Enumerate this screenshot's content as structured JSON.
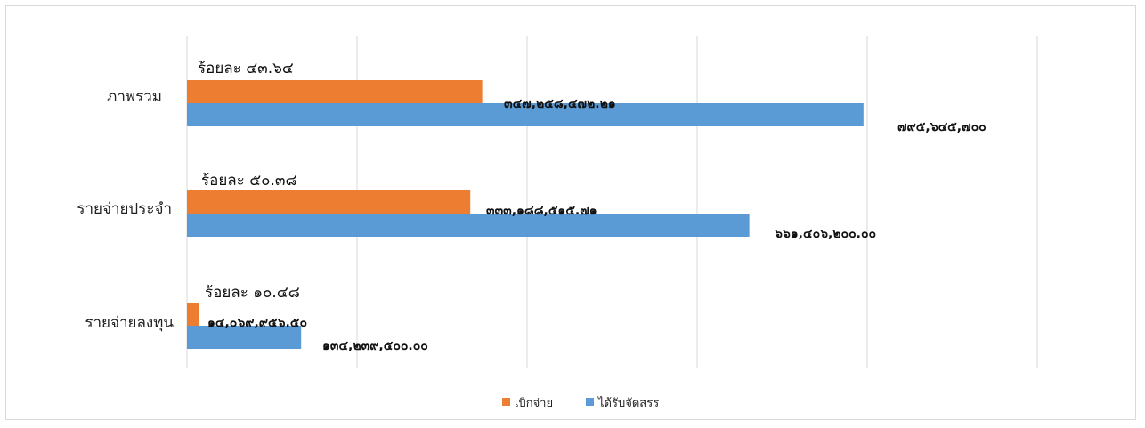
{
  "chart_data": {
    "type": "bar",
    "orientation": "horizontal",
    "categories": [
      "ภาพรวม",
      "รายจ่ายประจำ",
      "รายจ่ายลงทุน"
    ],
    "series": [
      {
        "name": "เบิกจ่าย",
        "color": "#ED7D31",
        "values": [
          347258472.21,
          333188515.71,
          14069956.5
        ],
        "labels": [
          "๓๔๗,๒๕๘,๔๗๒.๒๑",
          "๓๓๓,๑๘๘,๕๑๕.๗๑",
          "๑๔,๐๖๙,๙๕๖.๕๐"
        ]
      },
      {
        "name": "ได้รับจัดสรร",
        "color": "#5B9BD5",
        "values": [
          795645700.0,
          661406200.0,
          134239500.0
        ],
        "labels": [
          "๗๙๕,๖๔๕,๗๐๐",
          "๖๖๑,๔๐๖,๒๐๐.๐๐",
          "๑๓๔,๒๓๙,๕๐๐.๐๐"
        ]
      }
    ],
    "percent_labels": [
      "ร้อยละ ๔๓.๖๔",
      "ร้อยละ  ๕๐.๓๘",
      "ร้อยละ ๑๐.๔๘"
    ],
    "xlim": [
      0,
      1000000000
    ],
    "x_gridlines": [
      0,
      200000000,
      400000000,
      600000000,
      800000000,
      1000000000
    ],
    "grid": true,
    "legend_position": "bottom"
  }
}
